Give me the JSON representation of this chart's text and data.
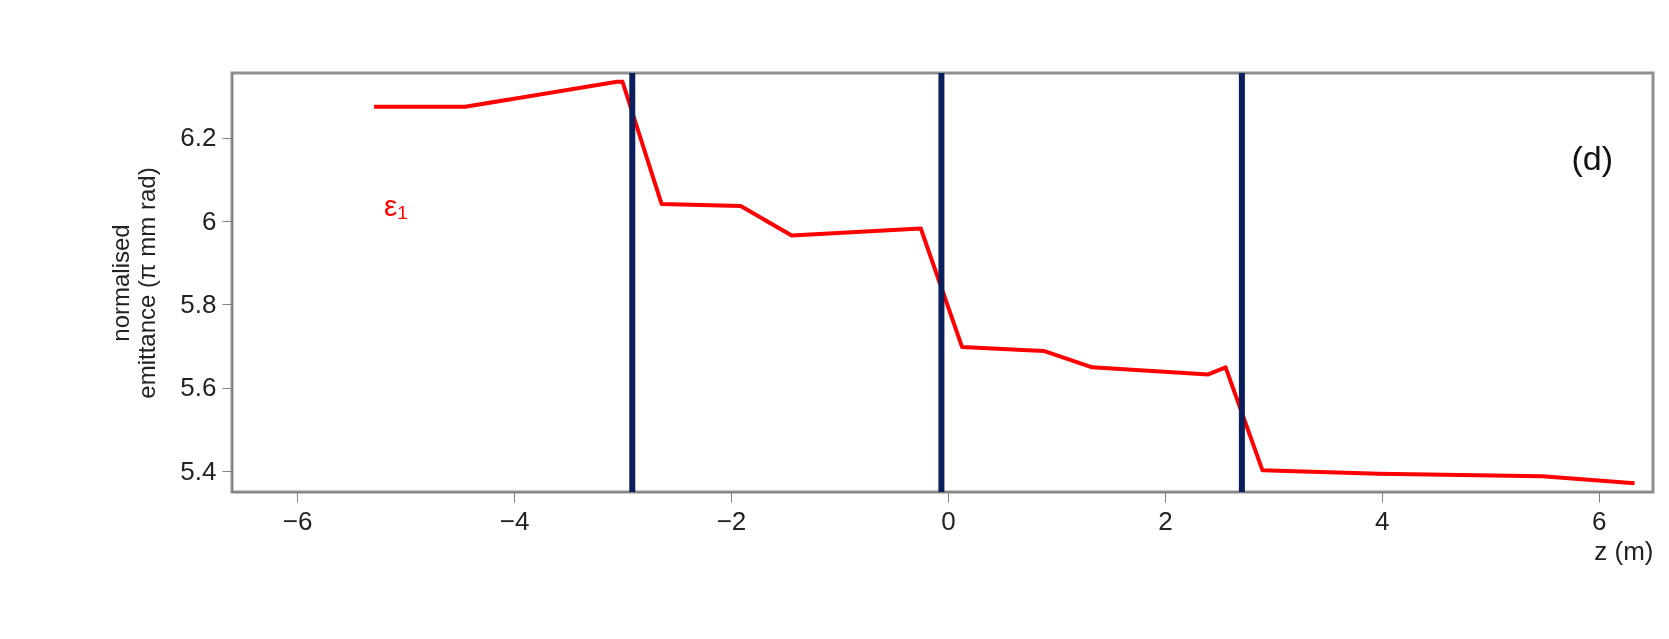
{
  "chart_data": {
    "type": "line",
    "xlabel": "z (m)",
    "ylabel": "normalised\nemittance (π mm rad)",
    "annotations": [
      "(d)"
    ],
    "xlim": [
      -6.6,
      6.5
    ],
    "xticks": [
      -6,
      -4,
      -2,
      0,
      2,
      4,
      6
    ],
    "ylim": [
      5.35,
      6.355
    ],
    "yticks": [
      5.4,
      5.6,
      5.8,
      6,
      6.2
    ],
    "grid": false,
    "marker": "none",
    "line_style": "solid",
    "series": [
      {
        "name": "ε₁",
        "color": "#ff0000",
        "x": [
          -5.29,
          -4.45,
          -3.05,
          -3.0,
          -2.64,
          -1.91,
          -1.44,
          -0.25,
          0.13,
          0.89,
          1.33,
          2.4,
          2.56,
          2.9,
          3.97,
          5.48,
          6.33
        ],
        "values": [
          6.274,
          6.274,
          6.334,
          6.334,
          6.041,
          6.036,
          5.965,
          5.982,
          5.698,
          5.688,
          5.649,
          5.632,
          5.649,
          5.402,
          5.394,
          5.388,
          5.371
        ]
      }
    ],
    "ref_lines": [
      {
        "axis": "x",
        "value": -2.91,
        "color": "#0a1f5c"
      },
      {
        "axis": "x",
        "value": -0.06,
        "color": "#0a1f5c"
      },
      {
        "axis": "x",
        "value": 2.71,
        "color": "#0a1f5c"
      }
    ]
  }
}
